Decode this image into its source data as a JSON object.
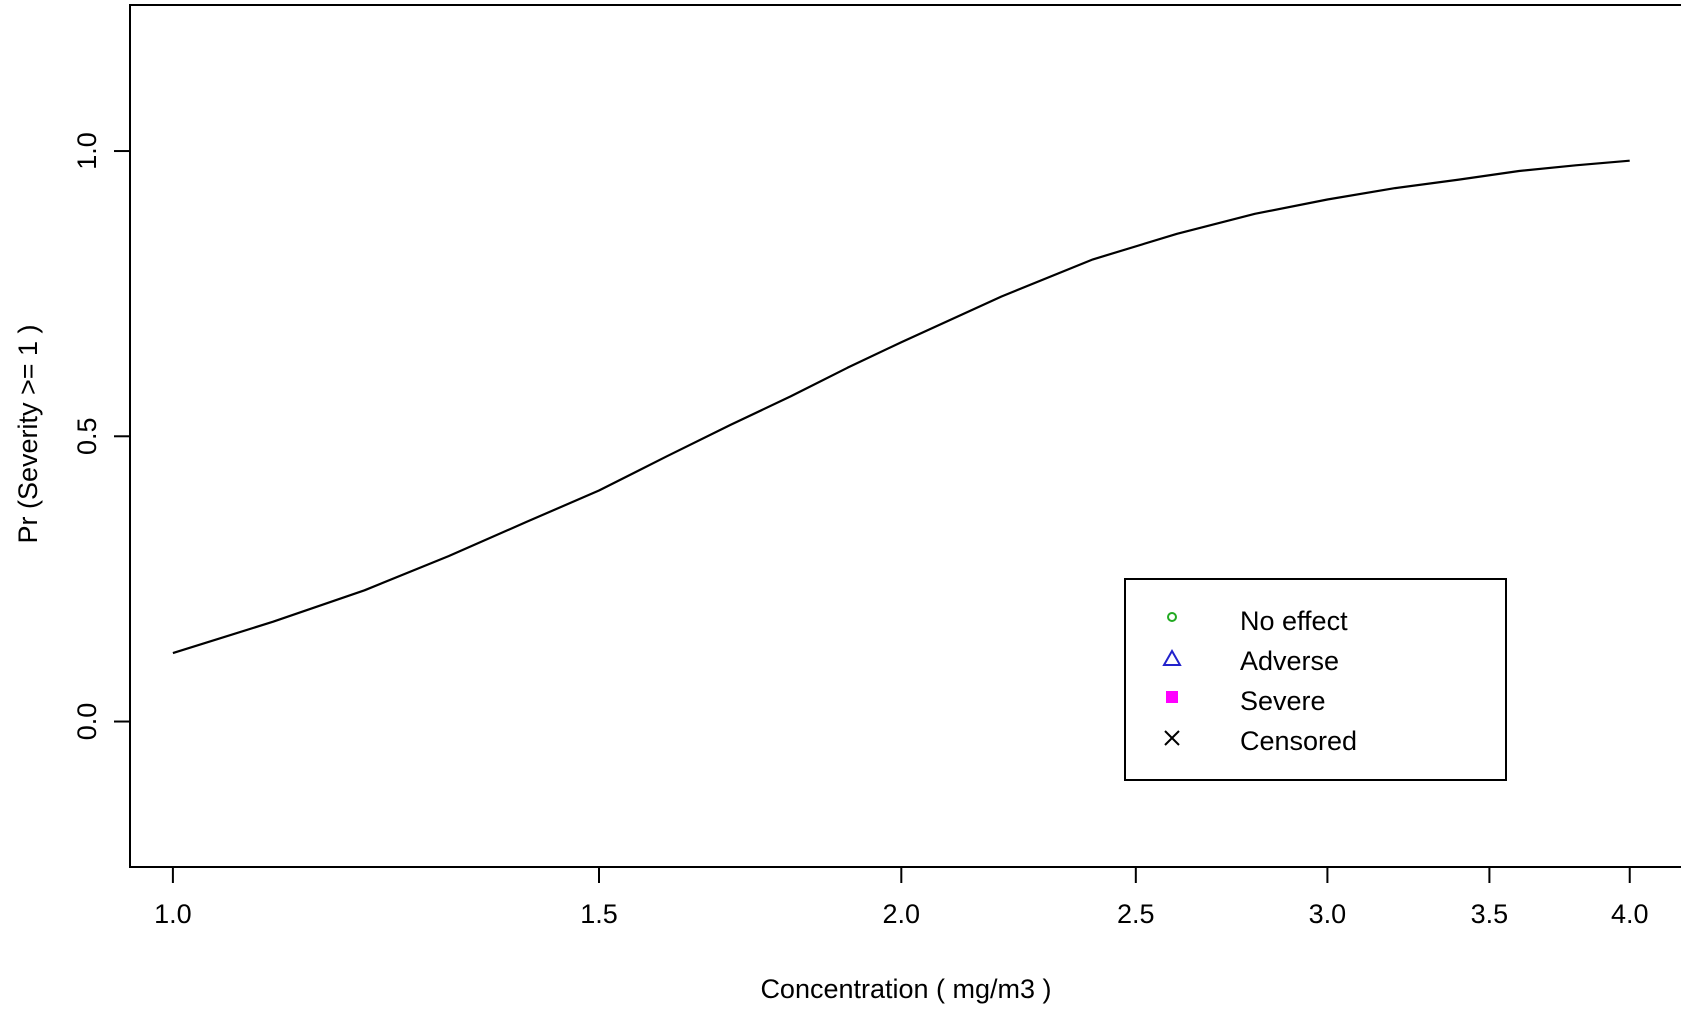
{
  "chart_data": {
    "type": "line",
    "title": "",
    "xlabel": "Concentration ( mg/m3 )",
    "ylabel": "Pr (Severity >= 1 )",
    "x_scale": "log",
    "xlim": [
      0.96,
      4.2
    ],
    "ylim": [
      -0.255,
      1.256
    ],
    "x_ticks": [
      {
        "value": 1.0,
        "label": "1.0"
      },
      {
        "value": 1.5,
        "label": "1.5"
      },
      {
        "value": 2.0,
        "label": "2.0"
      },
      {
        "value": 2.5,
        "label": "2.5"
      },
      {
        "value": 3.0,
        "label": "3.0"
      },
      {
        "value": 3.5,
        "label": "3.5"
      },
      {
        "value": 4.0,
        "label": "4.0"
      }
    ],
    "y_ticks": [
      {
        "value": 0.0,
        "label": "0.0"
      },
      {
        "value": 0.5,
        "label": "0.5"
      },
      {
        "value": 1.0,
        "label": "1.0"
      }
    ],
    "grid": false,
    "series": [
      {
        "color": "#000000",
        "x": [
          1.0,
          1.1,
          1.2,
          1.3,
          1.4,
          1.5,
          1.6,
          1.7,
          1.8,
          1.9,
          2.0,
          2.2,
          2.4,
          2.6,
          2.8,
          3.0,
          3.2,
          3.4,
          3.6,
          3.8,
          4.0
        ],
        "y": [
          0.12,
          0.175,
          0.23,
          0.29,
          0.35,
          0.405,
          0.465,
          0.52,
          0.57,
          0.62,
          0.665,
          0.745,
          0.81,
          0.855,
          0.89,
          0.915,
          0.935,
          0.95,
          0.965,
          0.975,
          0.983
        ]
      }
    ],
    "legend": {
      "position": "bottom-right",
      "entries": [
        {
          "label": "No effect",
          "marker": "circle",
          "color": "#22aa22"
        },
        {
          "label": "Adverse",
          "marker": "triangle",
          "color": "#2222cc"
        },
        {
          "label": "Severe",
          "marker": "square",
          "color": "#ff00ff"
        },
        {
          "label": "Censored",
          "marker": "cross",
          "color": "#000000"
        }
      ]
    }
  }
}
